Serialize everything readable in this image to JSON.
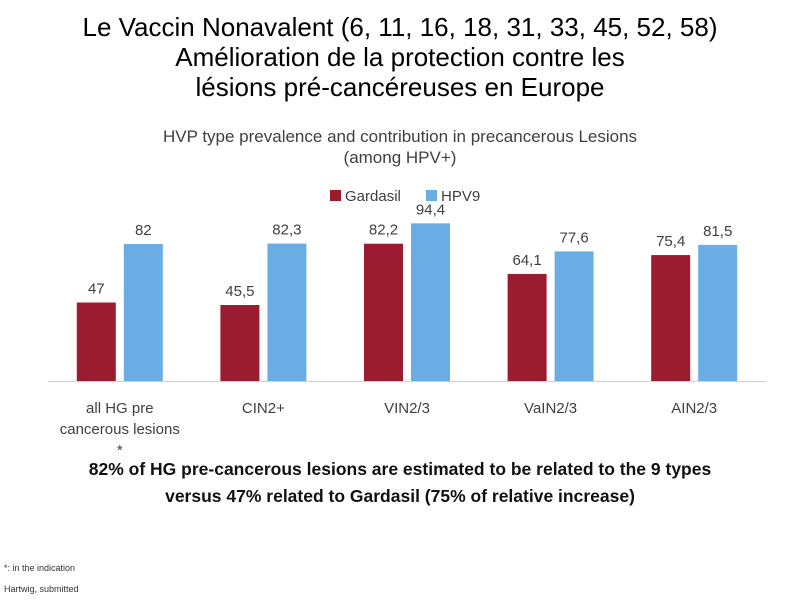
{
  "slide": {
    "title_lines": [
      "Le Vaccin Nonavalent (6, 11, 16, 18, 31, 33, 45, 52, 58)",
      "Amélioration de la protection contre les",
      "lésions pré-cancéreuses en Europe"
    ],
    "conclusion_lines": [
      "82% of HG pre-cancerous lesions are estimated to be related to the 9  types",
      "versus 47% related to Gardasil (75% of relative increase)"
    ],
    "footnote": "*: in the indication",
    "source": "Hartwig, submitted"
  },
  "chart_data": {
    "type": "bar",
    "title_lines": [
      "HVP type prevalence and contribution in precancerous Lesions",
      "(among HPV+)"
    ],
    "category_lines": [
      [
        "all HG pre",
        "cancerous lesions",
        "*"
      ],
      [
        "CIN2+"
      ],
      [
        "VIN2/3"
      ],
      [
        "VaIN2/3"
      ],
      [
        "AIN2/3"
      ]
    ],
    "series": [
      {
        "name": "Gardasil",
        "color": "#9b1b30",
        "values": [
          47,
          45.5,
          82.2,
          64.1,
          75.4
        ],
        "labels": [
          "47",
          "45,5",
          "82,2",
          "64,1",
          "75,4"
        ]
      },
      {
        "name": "HPV9",
        "color": "#6aade4",
        "values": [
          82,
          82.3,
          94.4,
          77.6,
          81.5
        ],
        "labels": [
          "82",
          "82,3",
          "94,4",
          "77,6",
          "81,5"
        ]
      }
    ],
    "ylim": [
      0,
      100
    ],
    "grid": false,
    "legend_position": "top-center"
  }
}
